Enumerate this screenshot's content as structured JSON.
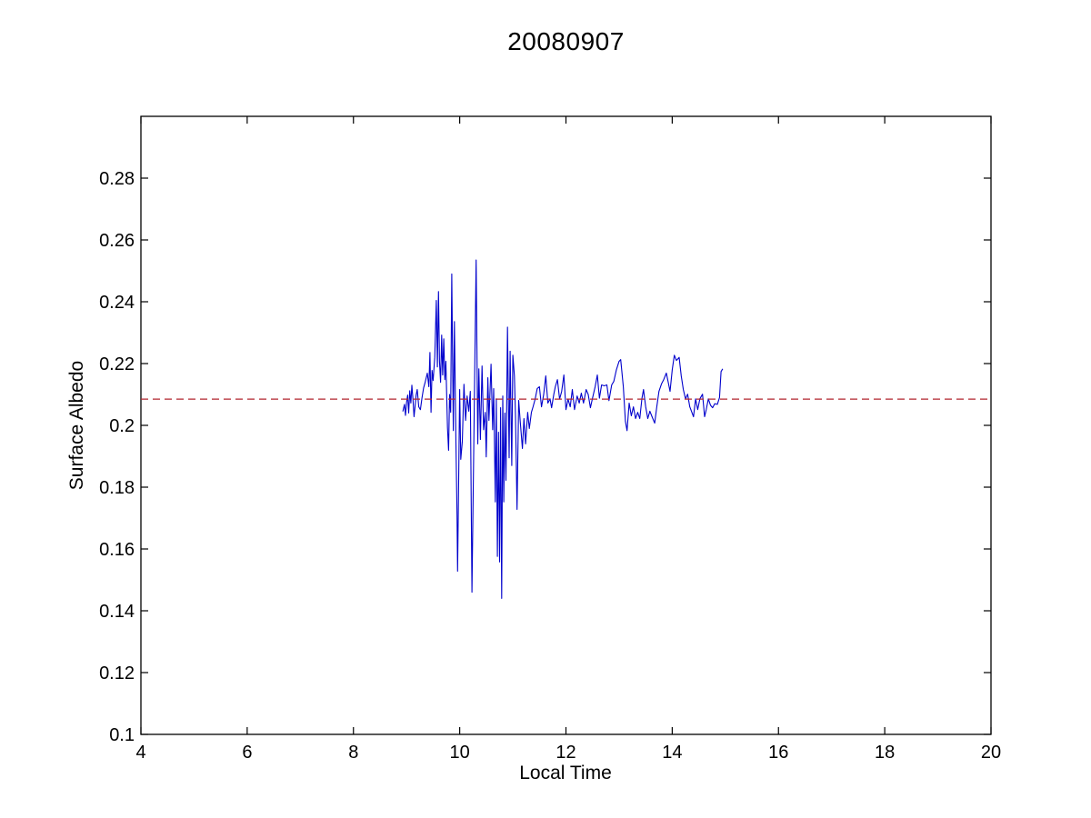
{
  "page": {
    "title": "20080907"
  },
  "chart_data": {
    "type": "line",
    "title": "20080907",
    "xlabel": "Local Time",
    "ylabel": "Surface Albedo",
    "xlim": [
      4,
      20
    ],
    "ylim": [
      0.1,
      0.3
    ],
    "xtick_values": [
      4,
      6,
      8,
      10,
      12,
      14,
      16,
      18,
      20
    ],
    "xtick_labels": [
      "4",
      "6",
      "8",
      "10",
      "12",
      "14",
      "16",
      "18",
      "20"
    ],
    "ytick_values": [
      0.1,
      0.12,
      0.14,
      0.16,
      0.18,
      0.2,
      0.22,
      0.24,
      0.26,
      0.28
    ],
    "ytick_labels": [
      "0.1",
      "0.12",
      "0.14",
      "0.16",
      "0.18",
      "0.2",
      "0.22",
      "0.24",
      "0.26",
      "0.28"
    ],
    "grid": false,
    "legend": null,
    "colors": {
      "series_line": "#0000cc",
      "reference_line": "#b2252f",
      "axis": "#000000",
      "background": "#ffffff"
    },
    "reference_line": {
      "value": 0.2085,
      "style": "dashed",
      "span": [
        4,
        20
      ]
    },
    "series": [
      {
        "name": "surface-albedo",
        "color": "#0000cc",
        "points": [
          [
            8.93,
            0.2045
          ],
          [
            8.96,
            0.2068
          ],
          [
            8.98,
            0.2032
          ],
          [
            9.0,
            0.2075
          ],
          [
            9.02,
            0.2098
          ],
          [
            9.04,
            0.204
          ],
          [
            9.06,
            0.2112
          ],
          [
            9.08,
            0.2072
          ],
          [
            9.1,
            0.213
          ],
          [
            9.12,
            0.2085
          ],
          [
            9.14,
            0.2028
          ],
          [
            9.16,
            0.206
          ],
          [
            9.18,
            0.2098
          ],
          [
            9.2,
            0.2116
          ],
          [
            9.23,
            0.206
          ],
          [
            9.26,
            0.2051
          ],
          [
            9.29,
            0.2088
          ],
          [
            9.32,
            0.2121
          ],
          [
            9.35,
            0.2139
          ],
          [
            9.39,
            0.2169
          ],
          [
            9.42,
            0.2125
          ],
          [
            9.44,
            0.2236
          ],
          [
            9.46,
            0.2042
          ],
          [
            9.48,
            0.2178
          ],
          [
            9.5,
            0.2145
          ],
          [
            9.53,
            0.222
          ],
          [
            9.56,
            0.2404
          ],
          [
            9.58,
            0.2189
          ],
          [
            9.6,
            0.2433
          ],
          [
            9.62,
            0.2207
          ],
          [
            9.64,
            0.2139
          ],
          [
            9.66,
            0.2292
          ],
          [
            9.68,
            0.2163
          ],
          [
            9.7,
            0.228
          ],
          [
            9.72,
            0.2148
          ],
          [
            9.74,
            0.2207
          ],
          [
            9.77,
            0.1992
          ],
          [
            9.79,
            0.1919
          ],
          [
            9.81,
            0.21
          ],
          [
            9.83,
            0.2042
          ],
          [
            9.85,
            0.249
          ],
          [
            9.88,
            0.1983
          ],
          [
            9.9,
            0.2336
          ],
          [
            9.93,
            0.194
          ],
          [
            9.95,
            0.1708
          ],
          [
            9.96,
            0.1528
          ],
          [
            9.98,
            0.1825
          ],
          [
            10.0,
            0.2116
          ],
          [
            10.02,
            0.189
          ],
          [
            10.05,
            0.1948
          ],
          [
            10.08,
            0.2133
          ],
          [
            10.11,
            0.2016
          ],
          [
            10.14,
            0.2095
          ],
          [
            10.17,
            0.2046
          ],
          [
            10.2,
            0.211
          ],
          [
            10.23,
            0.146
          ],
          [
            10.27,
            0.2
          ],
          [
            10.31,
            0.2535
          ],
          [
            10.34,
            0.194
          ],
          [
            10.36,
            0.2183
          ],
          [
            10.39,
            0.1954
          ],
          [
            10.42,
            0.2192
          ],
          [
            10.45,
            0.1986
          ],
          [
            10.48,
            0.2042
          ],
          [
            10.5,
            0.1898
          ],
          [
            10.53,
            0.2154
          ],
          [
            10.55,
            0.2016
          ],
          [
            10.59,
            0.2198
          ],
          [
            10.62,
            0.1986
          ],
          [
            10.64,
            0.2119
          ],
          [
            10.67,
            0.1752
          ],
          [
            10.69,
            0.2086
          ],
          [
            10.71,
            0.1576
          ],
          [
            10.73,
            0.1978
          ],
          [
            10.75,
            0.1558
          ],
          [
            10.77,
            0.2057
          ],
          [
            10.79,
            0.144
          ],
          [
            10.81,
            0.2095
          ],
          [
            10.83,
            0.1752
          ],
          [
            10.85,
            0.204
          ],
          [
            10.87,
            0.1822
          ],
          [
            10.9,
            0.2318
          ],
          [
            10.93,
            0.1895
          ],
          [
            10.95,
            0.224
          ],
          [
            10.98,
            0.187
          ],
          [
            11.0,
            0.2227
          ],
          [
            11.03,
            0.216
          ],
          [
            11.05,
            0.2031
          ],
          [
            11.08,
            0.1728
          ],
          [
            11.11,
            0.2081
          ],
          [
            11.14,
            0.2013
          ],
          [
            11.18,
            0.1925
          ],
          [
            11.21,
            0.2022
          ],
          [
            11.24,
            0.194
          ],
          [
            11.28,
            0.2042
          ],
          [
            11.31,
            0.199
          ],
          [
            11.35,
            0.2042
          ],
          [
            11.38,
            0.206
          ],
          [
            11.42,
            0.2085
          ],
          [
            11.46,
            0.2119
          ],
          [
            11.5,
            0.2125
          ],
          [
            11.54,
            0.206
          ],
          [
            11.58,
            0.21
          ],
          [
            11.62,
            0.216
          ],
          [
            11.66,
            0.2072
          ],
          [
            11.7,
            0.2086
          ],
          [
            11.73,
            0.2057
          ],
          [
            11.77,
            0.21
          ],
          [
            11.8,
            0.2125
          ],
          [
            11.84,
            0.2148
          ],
          [
            11.88,
            0.2085
          ],
          [
            11.92,
            0.211
          ],
          [
            11.96,
            0.2163
          ],
          [
            12.0,
            0.2051
          ],
          [
            12.04,
            0.2085
          ],
          [
            12.08,
            0.206
          ],
          [
            12.12,
            0.2116
          ],
          [
            12.16,
            0.2051
          ],
          [
            12.21,
            0.2095
          ],
          [
            12.25,
            0.2072
          ],
          [
            12.29,
            0.2104
          ],
          [
            12.33,
            0.2072
          ],
          [
            12.38,
            0.2116
          ],
          [
            12.42,
            0.21
          ],
          [
            12.46,
            0.2057
          ],
          [
            12.5,
            0.2088
          ],
          [
            12.55,
            0.2125
          ],
          [
            12.59,
            0.2163
          ],
          [
            12.63,
            0.2088
          ],
          [
            12.67,
            0.2131
          ],
          [
            12.72,
            0.2128
          ],
          [
            12.77,
            0.2131
          ],
          [
            12.81,
            0.208
          ],
          [
            12.86,
            0.2131
          ],
          [
            12.9,
            0.2142
          ],
          [
            12.95,
            0.218
          ],
          [
            13.0,
            0.2207
          ],
          [
            13.03,
            0.2213
          ],
          [
            13.08,
            0.2125
          ],
          [
            13.12,
            0.2013
          ],
          [
            13.15,
            0.1983
          ],
          [
            13.19,
            0.2072
          ],
          [
            13.23,
            0.2031
          ],
          [
            13.27,
            0.206
          ],
          [
            13.31,
            0.2022
          ],
          [
            13.35,
            0.2042
          ],
          [
            13.39,
            0.2022
          ],
          [
            13.43,
            0.2088
          ],
          [
            13.46,
            0.2116
          ],
          [
            13.5,
            0.206
          ],
          [
            13.54,
            0.2022
          ],
          [
            13.58,
            0.2046
          ],
          [
            13.62,
            0.2028
          ],
          [
            13.67,
            0.2007
          ],
          [
            13.71,
            0.206
          ],
          [
            13.75,
            0.211
          ],
          [
            13.8,
            0.2135
          ],
          [
            13.84,
            0.2148
          ],
          [
            13.89,
            0.2169
          ],
          [
            13.93,
            0.2135
          ],
          [
            13.96,
            0.211
          ],
          [
            14.0,
            0.218
          ],
          [
            14.04,
            0.2227
          ],
          [
            14.08,
            0.221
          ],
          [
            14.13,
            0.222
          ],
          [
            14.17,
            0.216
          ],
          [
            14.21,
            0.2116
          ],
          [
            14.25,
            0.2086
          ],
          [
            14.29,
            0.2101
          ],
          [
            14.33,
            0.206
          ],
          [
            14.37,
            0.2042
          ],
          [
            14.4,
            0.2028
          ],
          [
            14.44,
            0.2086
          ],
          [
            14.48,
            0.2051
          ],
          [
            14.52,
            0.2086
          ],
          [
            14.57,
            0.2101
          ],
          [
            14.61,
            0.2028
          ],
          [
            14.64,
            0.2051
          ],
          [
            14.68,
            0.2086
          ],
          [
            14.72,
            0.2065
          ],
          [
            14.76,
            0.2057
          ],
          [
            14.8,
            0.207
          ],
          [
            14.85,
            0.2068
          ],
          [
            14.89,
            0.209
          ],
          [
            14.92,
            0.2174
          ],
          [
            14.95,
            0.2183
          ]
        ]
      }
    ]
  }
}
